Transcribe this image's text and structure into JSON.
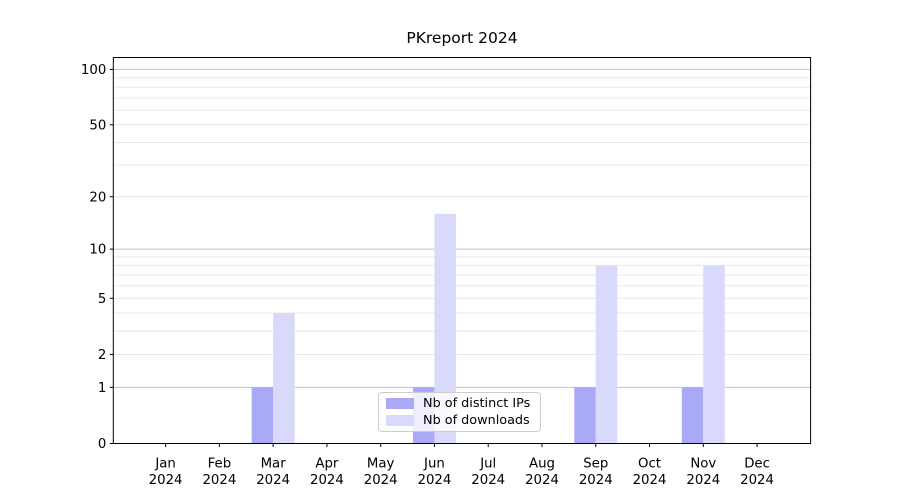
{
  "chart_data": {
    "type": "bar",
    "title": "PKreport 2024",
    "categories": [
      "Jan 2024",
      "Feb 2024",
      "Mar 2024",
      "Apr 2024",
      "May 2024",
      "Jun 2024",
      "Jul 2024",
      "Aug 2024",
      "Sep 2024",
      "Oct 2024",
      "Nov 2024",
      "Dec 2024"
    ],
    "x_axis": {
      "months": [
        "Jan",
        "Feb",
        "Mar",
        "Apr",
        "May",
        "Jun",
        "Jul",
        "Aug",
        "Sep",
        "Oct",
        "Nov",
        "Dec"
      ],
      "year": "2024"
    },
    "series": [
      {
        "name": "Nb of distinct IPs",
        "color": "#a9a9f7",
        "values": [
          0,
          0,
          1,
          0,
          0,
          1,
          0,
          0,
          1,
          0,
          1,
          0
        ]
      },
      {
        "name": "Nb of downloads",
        "color": "#d9d9fb",
        "values": [
          0,
          0,
          4,
          0,
          0,
          16,
          0,
          0,
          8,
          0,
          8,
          0
        ]
      }
    ],
    "y_axis": {
      "scale": "log1p",
      "ticks": [
        0,
        1,
        2,
        5,
        10,
        20,
        50,
        100
      ],
      "tick_labels": [
        "0",
        "1",
        "2",
        "5",
        "10",
        "20",
        "50",
        "100"
      ],
      "major_gridlines": [
        1,
        10,
        100
      ],
      "minor_gridlines": [
        2,
        3,
        4,
        5,
        6,
        7,
        8,
        9,
        20,
        30,
        40,
        50,
        60,
        70,
        80,
        90
      ],
      "min": 0,
      "max": 116
    },
    "legend_position": "lower center",
    "grid": "on",
    "colors": {
      "grid_major": "#c3c3c3",
      "grid_minor": "#e8e8e8",
      "spine": "#000000",
      "text": "#000000",
      "background": "#ffffff"
    }
  }
}
